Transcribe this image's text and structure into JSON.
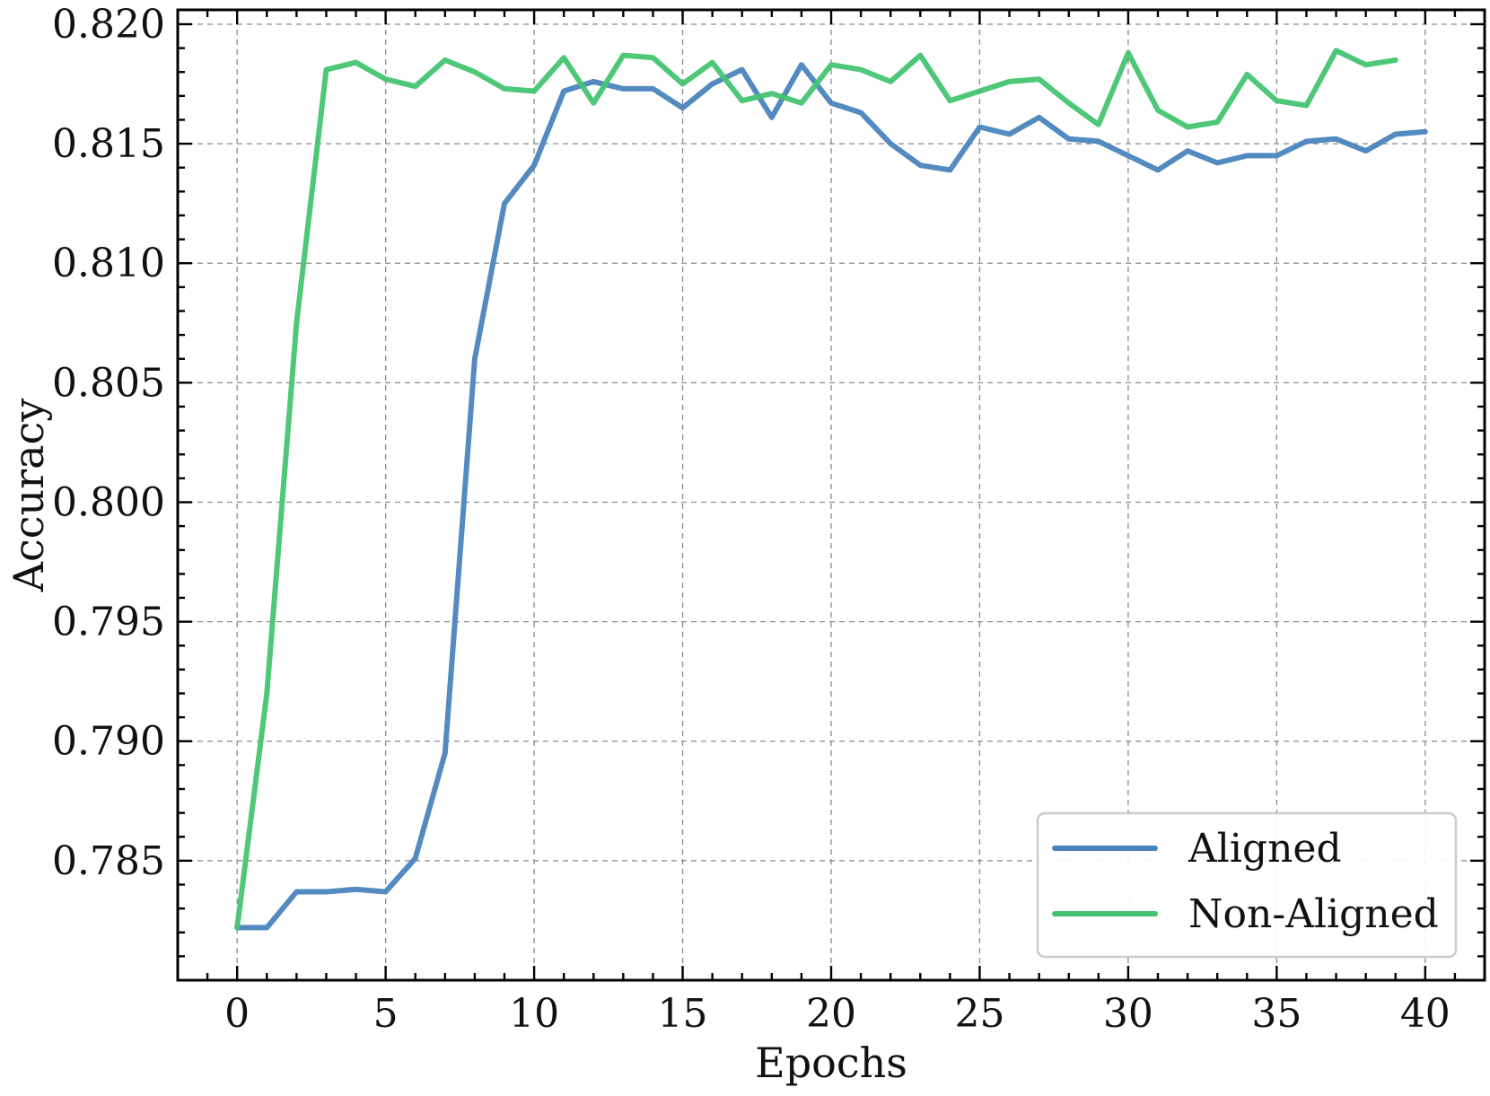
{
  "chart_data": {
    "type": "line",
    "title": "",
    "xlabel": "Epochs",
    "ylabel": "Accuracy",
    "xlim": [
      -2,
      42
    ],
    "ylim": [
      0.78,
      0.8206
    ],
    "x_ticks": [
      0,
      5,
      10,
      15,
      20,
      25,
      30,
      35,
      40
    ],
    "x_tick_labels": [
      "0",
      "5",
      "10",
      "15",
      "20",
      "25",
      "30",
      "35",
      "40"
    ],
    "y_ticks": [
      0.785,
      0.79,
      0.795,
      0.8,
      0.805,
      0.81,
      0.815,
      0.82
    ],
    "y_tick_labels": [
      "0.785",
      "0.790",
      "0.795",
      "0.800",
      "0.805",
      "0.810",
      "0.815",
      "0.820"
    ],
    "grid": true,
    "legend_position": "bottom-right",
    "series": [
      {
        "name": "Aligned",
        "color": "#4a84bd",
        "x": [
          0,
          1,
          2,
          3,
          4,
          5,
          6,
          7,
          8,
          9,
          10,
          11,
          12,
          13,
          14,
          15,
          16,
          17,
          18,
          19,
          20,
          21,
          22,
          23,
          24,
          25,
          26,
          27,
          28,
          29,
          30,
          31,
          32,
          33,
          34,
          35,
          36,
          37,
          38,
          39,
          40
        ],
        "values": [
          0.7822,
          0.7822,
          0.7837,
          0.7837,
          0.7838,
          0.7837,
          0.7851,
          0.7895,
          0.806,
          0.8125,
          0.8141,
          0.8172,
          0.8176,
          0.8173,
          0.8173,
          0.8165,
          0.8175,
          0.8181,
          0.8161,
          0.8183,
          0.8167,
          0.8163,
          0.815,
          0.8141,
          0.8139,
          0.8157,
          0.8154,
          0.8161,
          0.8152,
          0.8151,
          0.8145,
          0.8139,
          0.8147,
          0.8142,
          0.8145,
          0.8145,
          0.8151,
          0.8152,
          0.8147,
          0.8154,
          0.8155
        ]
      },
      {
        "name": "Non-Aligned",
        "color": "#44c472",
        "x": [
          0,
          1,
          2,
          3,
          4,
          5,
          6,
          7,
          8,
          9,
          10,
          11,
          12,
          13,
          14,
          15,
          16,
          17,
          18,
          19,
          20,
          21,
          22,
          23,
          24,
          25,
          26,
          27,
          28,
          29,
          30,
          31,
          32,
          33,
          34,
          35,
          36,
          37,
          38,
          39
        ],
        "values": [
          0.7822,
          0.792,
          0.8075,
          0.8181,
          0.8184,
          0.8177,
          0.8174,
          0.8185,
          0.818,
          0.8173,
          0.8172,
          0.8186,
          0.8167,
          0.8187,
          0.8186,
          0.8175,
          0.8184,
          0.8168,
          0.8171,
          0.8167,
          0.8183,
          0.8181,
          0.8176,
          0.8187,
          0.8168,
          0.8172,
          0.8176,
          0.8177,
          0.8167,
          0.8158,
          0.8188,
          0.8164,
          0.8157,
          0.8159,
          0.8179,
          0.8168,
          0.8166,
          0.8189,
          0.8183,
          0.8185
        ]
      }
    ]
  }
}
